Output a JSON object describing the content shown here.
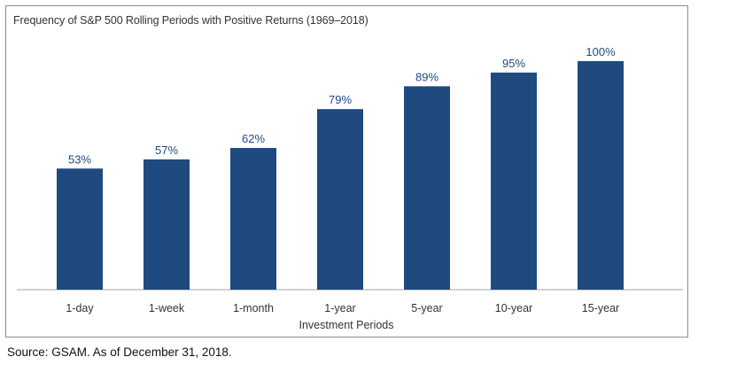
{
  "chart_data": {
    "type": "bar",
    "title": "Frequency of S&P 500 Rolling Periods with Positive Returns (1969–2018)",
    "xlabel": "Investment Periods",
    "ylabel": "",
    "categories": [
      "1-day",
      "1-week",
      "1-month",
      "1-year",
      "5-year",
      "10-year",
      "15-year"
    ],
    "values": [
      53,
      57,
      62,
      79,
      89,
      95,
      100
    ],
    "value_labels": [
      "53%",
      "57%",
      "62%",
      "79%",
      "89%",
      "95%",
      "100%"
    ],
    "ylim": [
      0,
      100
    ],
    "grid": false,
    "bar_color": "#1f4a80",
    "source": "Source: GSAM. As of December 31, 2018."
  }
}
